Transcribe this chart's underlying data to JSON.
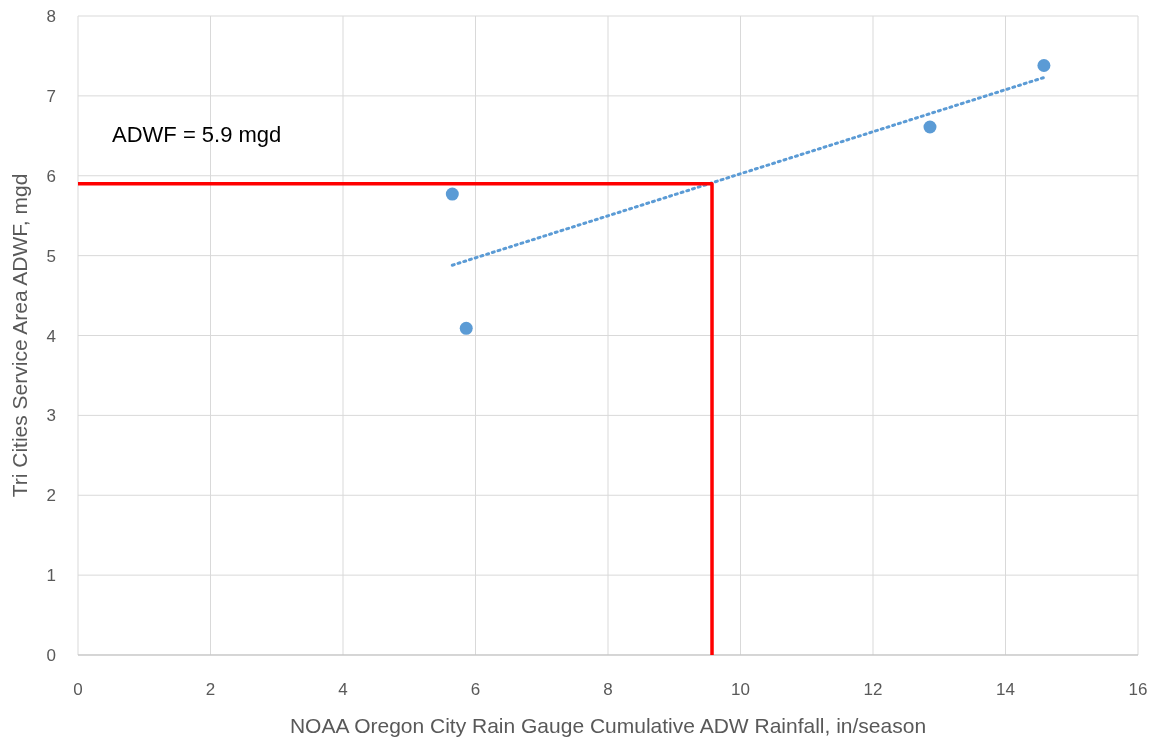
{
  "chart_data": {
    "type": "scatter",
    "xlabel": "NOAA Oregon City Rain Gauge Cumulative ADW Rainfall, in/season",
    "ylabel": "Tri Cities Service Area ADWF, mgd",
    "xlim": [
      0,
      16
    ],
    "xticks": [
      0,
      2,
      4,
      6,
      8,
      10,
      12,
      14,
      16
    ],
    "ylim": [
      0,
      8
    ],
    "yticks": [
      0,
      1,
      2,
      3,
      4,
      5,
      6,
      7,
      8
    ],
    "grid": true,
    "annotations": [
      "ADWF = 5.9 mgd"
    ],
    "series": [
      {
        "color": "#5b9bd5",
        "marker": "circle",
        "x": [
          5.65,
          5.86,
          12.86,
          14.58
        ],
        "values": [
          5.77,
          4.09,
          6.61,
          7.38
        ]
      },
      {
        "type": "line",
        "color": "#5b9bd5",
        "line_style": "dotted",
        "x": [
          5.65,
          14.58
        ],
        "values": [
          4.88,
          7.23
        ]
      },
      {
        "type": "line",
        "color": "#ff0000",
        "line_style": "solid",
        "x": [
          0,
          9.57,
          9.57
        ],
        "values": [
          5.9,
          5.9,
          0
        ]
      }
    ]
  }
}
